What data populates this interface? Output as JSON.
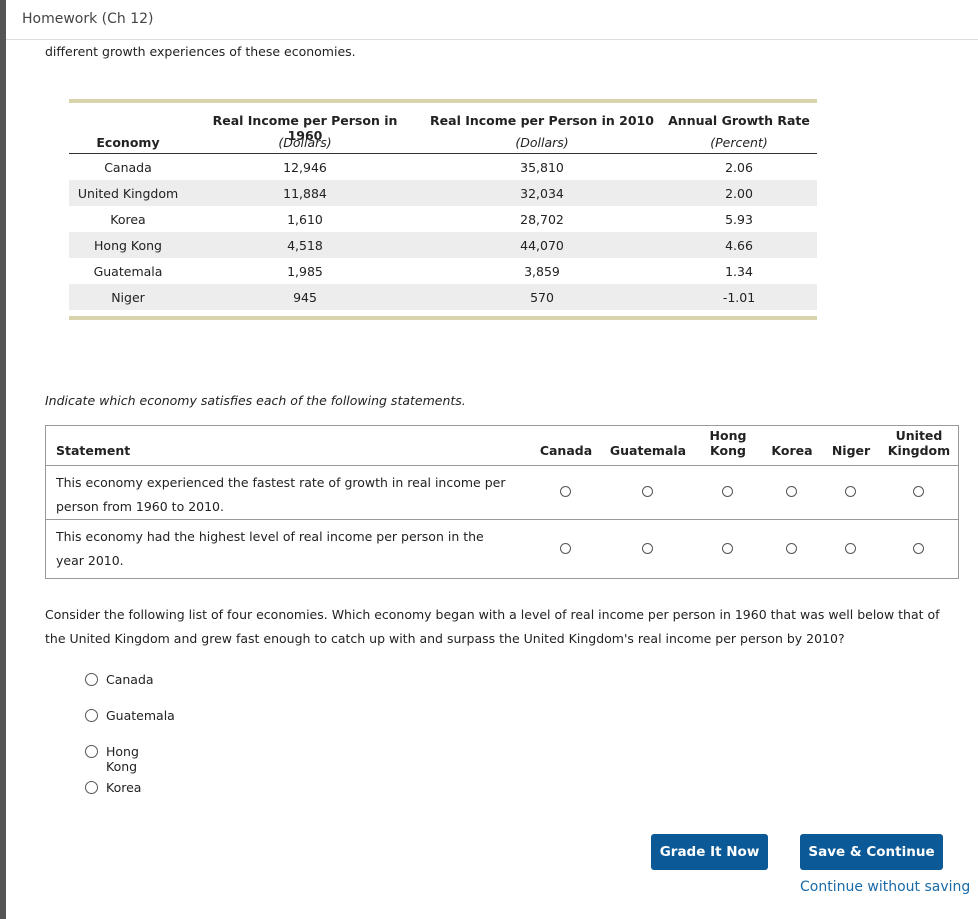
{
  "header": {
    "title": "Homework (Ch 12)"
  },
  "intro": "different growth experiences of these economies.",
  "data_table": {
    "headers": [
      "Economy",
      "Real Income per Person in 1960",
      "Real Income per Person in 2010",
      "Annual Growth Rate"
    ],
    "units": [
      "(Dollars)",
      "(Dollars)",
      "(Percent)"
    ],
    "rows": [
      [
        "Canada",
        "12,946",
        "35,810",
        "2.06"
      ],
      [
        "United Kingdom",
        "11,884",
        "32,034",
        "2.00"
      ],
      [
        "Korea",
        "1,610",
        "28,702",
        "5.93"
      ],
      [
        "Hong Kong",
        "4,518",
        "44,070",
        "4.66"
      ],
      [
        "Guatemala",
        "1,985",
        "3,859",
        "1.34"
      ],
      [
        "Niger",
        "945",
        "570",
        "-1.01"
      ]
    ]
  },
  "instruction": "Indicate which economy satisfies each of the following statements.",
  "matrix": {
    "statement_header": "Statement",
    "columns": [
      "Canada",
      "Guatemala",
      "Hong Kong",
      "Korea",
      "Niger",
      "United Kingdom"
    ],
    "statements": [
      "This economy experienced the fastest rate of growth in real income per person from 1960 to 2010.",
      "This economy had the highest level of real income per person in the year 2010."
    ]
  },
  "question": {
    "text": "Consider the following list of four economies. Which economy began with a level of real income per person in 1960 that was well below that of the United Kingdom and grew fast enough to catch up with and surpass the United Kingdom's real income per person by 2010?",
    "options": [
      "Canada",
      "Guatemala",
      "Hong Kong",
      "Korea"
    ]
  },
  "buttons": {
    "grade": "Grade It Now",
    "save": "Save & Continue",
    "skip": "Continue without saving"
  }
}
